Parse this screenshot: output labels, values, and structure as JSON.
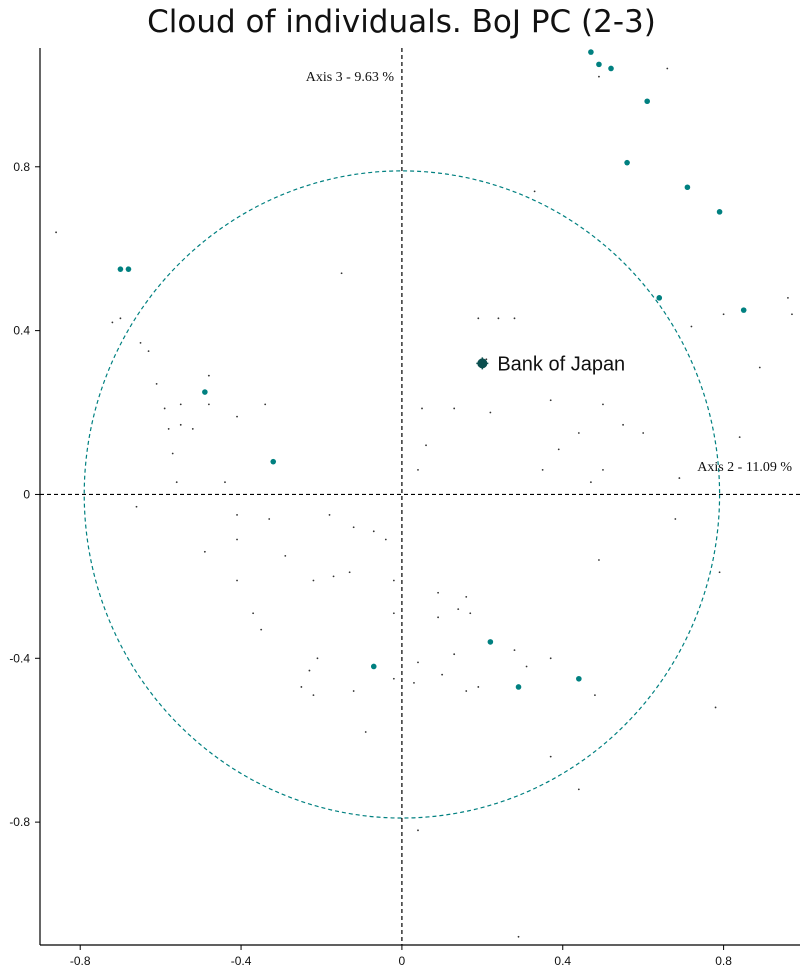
{
  "colors": {
    "accent": "#008080",
    "small_point": "#333333",
    "axis": "#000000",
    "circle": "#008080"
  },
  "chart_data": {
    "type": "scatter",
    "title": "Cloud of individuals. BoJ PC (2-3)",
    "x_axis_annotation": "Axis 2  -  11.09 %",
    "y_axis_annotation": "Axis 3  -  9.63 %",
    "xlim": [
      -0.9,
      0.99
    ],
    "ylim": [
      -1.1,
      1.09
    ],
    "x_ticks": [
      -0.8,
      -0.4,
      0,
      0.4,
      0.8
    ],
    "y_ticks": [
      -0.8,
      -0.4,
      0,
      0.4,
      0.8
    ],
    "x_tick_labels": [
      "-0.8",
      "-0.4",
      "0",
      "0.4",
      "0.8"
    ],
    "y_tick_labels": [
      "-0.8",
      "-0.4",
      "0",
      "0.4",
      "0.8"
    ],
    "reference_circle": {
      "center": [
        0,
        0
      ],
      "radius": 0.79
    },
    "highlight": {
      "label": "Bank of Japan",
      "x": 0.2,
      "y": 0.32
    },
    "series": [
      {
        "values": [
          [
            0.47,
            1.08
          ],
          [
            0.49,
            1.05
          ],
          [
            0.52,
            1.04
          ],
          [
            0.61,
            0.96
          ],
          [
            0.56,
            0.81
          ],
          [
            0.71,
            0.75
          ],
          [
            0.79,
            0.69
          ],
          [
            0.64,
            0.48
          ],
          [
            0.85,
            0.45
          ],
          [
            -0.7,
            0.55
          ],
          [
            -0.68,
            0.55
          ],
          [
            -0.49,
            0.25
          ],
          [
            -0.32,
            0.08
          ],
          [
            -0.07,
            -0.42
          ],
          [
            0.22,
            -0.36
          ],
          [
            0.29,
            -0.47
          ],
          [
            0.44,
            -0.45
          ]
        ]
      },
      {
        "values": [
          [
            -0.86,
            0.64
          ],
          [
            -0.72,
            0.42
          ],
          [
            -0.7,
            0.43
          ],
          [
            -0.65,
            0.37
          ],
          [
            -0.63,
            0.35
          ],
          [
            -0.61,
            0.27
          ],
          [
            -0.59,
            0.21
          ],
          [
            -0.58,
            0.16
          ],
          [
            -0.55,
            0.22
          ],
          [
            -0.55,
            0.17
          ],
          [
            -0.52,
            0.16
          ],
          [
            -0.48,
            0.29
          ],
          [
            -0.48,
            0.22
          ],
          [
            -0.57,
            0.1
          ],
          [
            -0.56,
            0.03
          ],
          [
            -0.41,
            0.19
          ],
          [
            -0.34,
            0.22
          ],
          [
            -0.44,
            0.03
          ],
          [
            -0.15,
            0.54
          ],
          [
            -0.66,
            -0.03
          ],
          [
            -0.49,
            -0.14
          ],
          [
            -0.41,
            -0.05
          ],
          [
            -0.41,
            -0.11
          ],
          [
            -0.33,
            -0.06
          ],
          [
            -0.29,
            -0.15
          ],
          [
            -0.41,
            -0.21
          ],
          [
            -0.37,
            -0.29
          ],
          [
            -0.35,
            -0.33
          ],
          [
            -0.22,
            -0.21
          ],
          [
            -0.17,
            -0.2
          ],
          [
            -0.18,
            -0.05
          ],
          [
            -0.12,
            -0.08
          ],
          [
            -0.13,
            -0.19
          ],
          [
            -0.07,
            -0.09
          ],
          [
            -0.04,
            -0.11
          ],
          [
            -0.02,
            -0.21
          ],
          [
            -0.02,
            -0.29
          ],
          [
            -0.02,
            -0.45
          ],
          [
            -0.21,
            -0.4
          ],
          [
            -0.23,
            -0.43
          ],
          [
            -0.25,
            -0.47
          ],
          [
            -0.22,
            -0.49
          ],
          [
            -0.12,
            -0.48
          ],
          [
            -0.09,
            -0.58
          ],
          [
            0.09,
            -0.24
          ],
          [
            0.09,
            -0.3
          ],
          [
            0.14,
            -0.28
          ],
          [
            0.17,
            -0.29
          ],
          [
            0.16,
            -0.25
          ],
          [
            0.04,
            -0.41
          ],
          [
            0.03,
            -0.46
          ],
          [
            0.1,
            -0.44
          ],
          [
            0.13,
            -0.39
          ],
          [
            0.16,
            -0.48
          ],
          [
            0.19,
            -0.47
          ],
          [
            0.28,
            -0.38
          ],
          [
            0.31,
            -0.42
          ],
          [
            0.37,
            -0.4
          ],
          [
            0.37,
            -0.64
          ],
          [
            0.44,
            -0.72
          ],
          [
            0.48,
            -0.49
          ],
          [
            0.04,
            -0.82
          ],
          [
            0.29,
            -1.08
          ],
          [
            0.05,
            0.21
          ],
          [
            0.13,
            0.21
          ],
          [
            0.22,
            0.2
          ],
          [
            0.24,
            0.43
          ],
          [
            0.28,
            0.43
          ],
          [
            0.33,
            0.74
          ],
          [
            0.37,
            0.23
          ],
          [
            0.39,
            0.11
          ],
          [
            0.44,
            0.15
          ],
          [
            0.5,
            0.22
          ],
          [
            0.55,
            0.17
          ],
          [
            0.35,
            0.06
          ],
          [
            0.47,
            0.03
          ],
          [
            0.5,
            0.06
          ],
          [
            0.06,
            0.12
          ],
          [
            0.19,
            0.43
          ],
          [
            0.21,
            0.33
          ],
          [
            0.49,
            1.02
          ],
          [
            0.66,
            1.04
          ],
          [
            0.72,
            0.41
          ],
          [
            0.8,
            0.44
          ],
          [
            0.84,
            0.14
          ],
          [
            0.89,
            0.31
          ],
          [
            0.96,
            0.48
          ],
          [
            0.97,
            0.44
          ],
          [
            0.6,
            0.15
          ],
          [
            0.68,
            -0.06
          ],
          [
            0.69,
            0.04
          ],
          [
            0.79,
            -0.19
          ],
          [
            0.49,
            -0.16
          ],
          [
            0.04,
            0.06
          ],
          [
            0.78,
            -0.52
          ]
        ]
      }
    ]
  }
}
